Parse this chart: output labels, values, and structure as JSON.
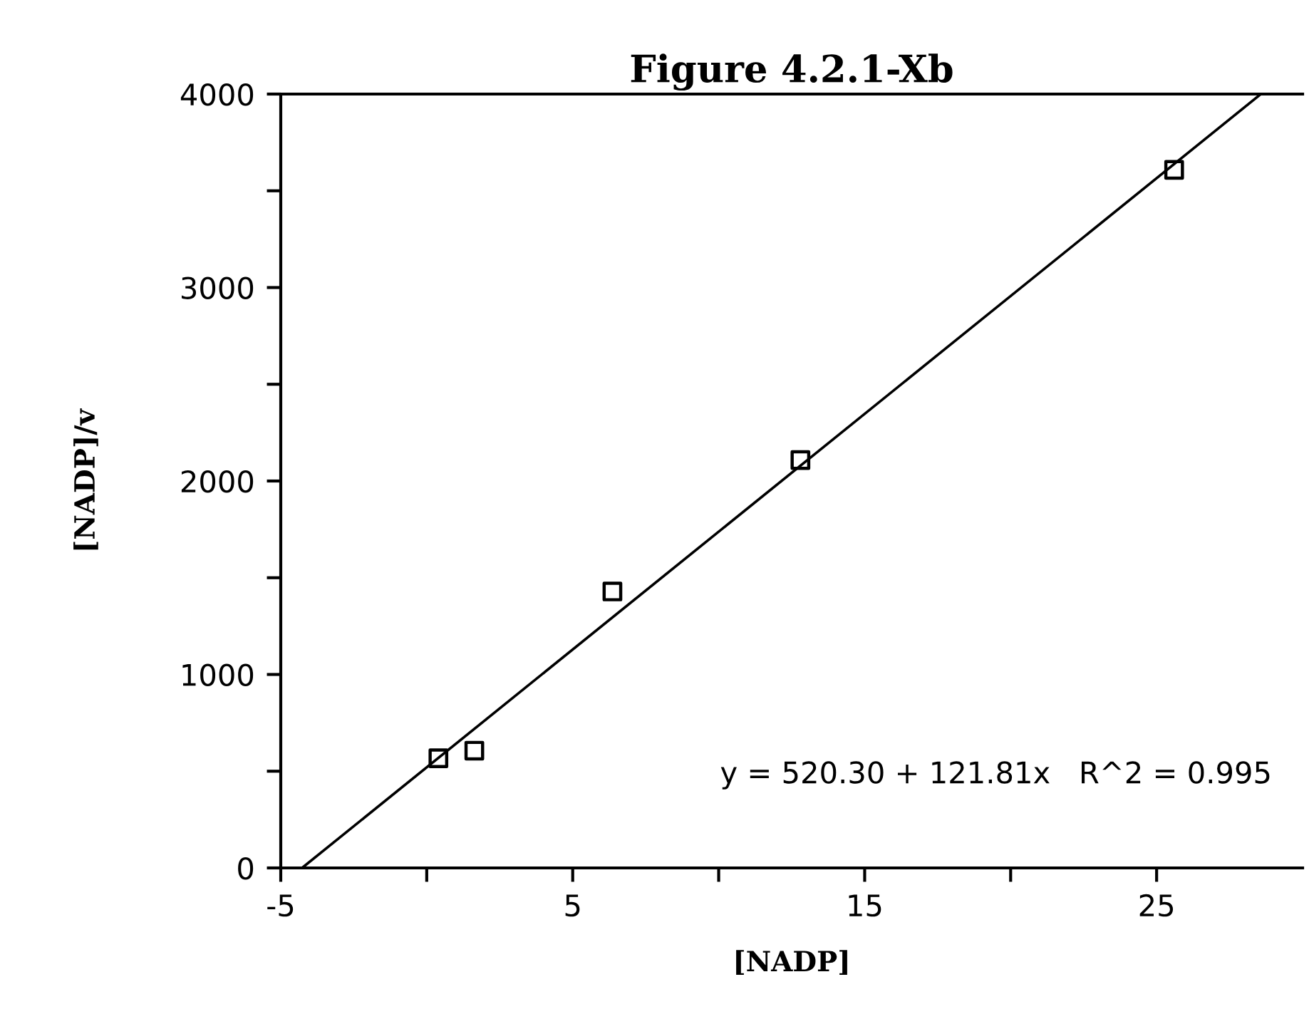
{
  "chart_data": {
    "type": "scatter",
    "title": "Figure 4.2.1-Xb",
    "xlabel": "[NADP]",
    "ylabel": "[NADP]/v",
    "series": [
      {
        "color": "#000000",
        "marker": "square",
        "x": [
          0.4,
          1.63,
          6.36,
          12.8,
          25.6
        ],
        "values": [
          567,
          606,
          1429,
          2108,
          3608
        ]
      },
      {
        "type": "line",
        "color": "#000000",
        "marker": "none",
        "line_style": "solid",
        "x": [
          -4.27,
          28.57
        ],
        "values": [
          0,
          4000
        ]
      }
    ],
    "annotations": [
      "y = 520.30 + 121.81x   R^2 = 0.995"
    ],
    "xlim": [
      -5,
      30
    ],
    "ylim": [
      0,
      4000
    ],
    "xticks": [
      -5,
      {
        "value": 0,
        "label": null
      },
      5,
      {
        "value": 10,
        "label": null
      },
      15,
      {
        "value": 20,
        "label": null
      },
      25
    ],
    "yticks": [
      0,
      {
        "value": 500,
        "label": null
      },
      1000,
      {
        "value": 1500,
        "label": null
      },
      2000,
      {
        "value": 2500,
        "label": null
      },
      3000,
      {
        "value": 3500,
        "label": null
      },
      4000
    ],
    "grid": false,
    "legend": false
  }
}
